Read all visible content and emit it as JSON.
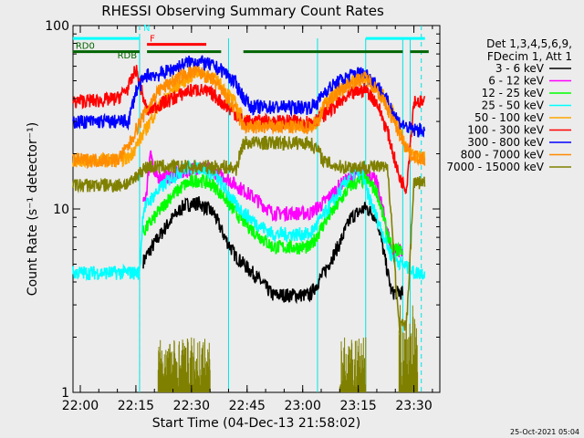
{
  "chart_data": {
    "type": "line",
    "title": "RHESSI Observing Summary Count Rates",
    "xlabel": "Start Time (04-Dec-13 21:58:02)",
    "ylabel": "Count Rate (s⁻¹ detector⁻¹)",
    "y_scale": "log",
    "ylim": [
      1,
      100
    ],
    "xlim": [
      "21:58:02",
      "23:37:00"
    ],
    "x_ticks": [
      "22:00",
      "22:15",
      "22:30",
      "22:45",
      "23:00",
      "23:15",
      "23:30"
    ],
    "y_ticks": [
      "1",
      "10",
      "100"
    ],
    "timestamp": "25-Oct-2021 05:04",
    "legend": {
      "placement": "right",
      "header": [
        "Det 1,3,4,5,6,9,",
        "FDecim 1, Att 1"
      ]
    },
    "series": [
      {
        "name": "3 - 6 keV",
        "color": "#000000",
        "x": [
          "22:17",
          "22:20",
          "22:24",
          "22:28",
          "22:32",
          "22:36",
          "22:39",
          "22:42",
          "22:47",
          "22:52",
          "22:57",
          "23:02",
          "23:06",
          "23:10",
          "23:13",
          "23:17",
          "23:20",
          "23:24",
          "23:27"
        ],
        "y": [
          5.2,
          6.5,
          8.5,
          10.5,
          10.8,
          9.5,
          7.0,
          5.5,
          4.4,
          3.4,
          3.4,
          3.4,
          4.6,
          6.5,
          9.0,
          10.2,
          9.0,
          3.5,
          3.5
        ]
      },
      {
        "name": "6 - 12 keV",
        "color": "#ff00ff",
        "x": [
          "22:17",
          "22:18",
          "22:19",
          "22:20",
          "22:24",
          "22:28",
          "22:32",
          "22:36",
          "22:39",
          "22:42",
          "22:47",
          "22:52",
          "22:57",
          "23:02",
          "23:06",
          "23:10",
          "23:13",
          "23:17",
          "23:20",
          "23:24",
          "23:27"
        ],
        "y": [
          10.5,
          13,
          22,
          15,
          15,
          16,
          17,
          16,
          15,
          13.5,
          11.5,
          9.5,
          9.5,
          9.5,
          11,
          13.5,
          15,
          16,
          14,
          6.0,
          6.0
        ]
      },
      {
        "name": "12 - 25 keV",
        "color": "#00ff00",
        "x": [
          "22:17",
          "22:20",
          "22:24",
          "22:28",
          "22:32",
          "22:36",
          "22:39",
          "22:42",
          "22:47",
          "22:52",
          "22:57",
          "23:02",
          "23:06",
          "23:10",
          "23:13",
          "23:17",
          "23:20",
          "23:24",
          "23:27"
        ],
        "y": [
          7.5,
          9.0,
          11.5,
          13.5,
          14.5,
          13.5,
          11.5,
          9.5,
          7.5,
          6.2,
          6.2,
          6.2,
          8.5,
          11,
          13.5,
          14.5,
          12.5,
          6.0,
          6.0
        ]
      },
      {
        "name": "25 - 50 keV",
        "color": "#00ffff",
        "x": [
          "21:58",
          "22:00",
          "22:05",
          "22:10",
          "22:14",
          "22:16",
          "22:17",
          "22:20",
          "22:24",
          "22:28",
          "22:32",
          "22:36",
          "22:39",
          "22:42",
          "22:47",
          "22:52",
          "22:57",
          "23:02",
          "23:06",
          "23:10",
          "23:13",
          "23:16",
          "23:17",
          "23:20",
          "23:24",
          "23:27",
          "23:30",
          "23:33"
        ],
        "y": [
          4.5,
          4.5,
          4.5,
          4.5,
          4.5,
          4.5,
          10,
          12,
          14.5,
          16.5,
          17,
          15.5,
          13,
          10.5,
          8.5,
          7.3,
          7.3,
          7.3,
          9.5,
          12.5,
          15.5,
          16,
          13,
          9,
          5.5,
          5.0,
          4.5,
          4.5
        ]
      },
      {
        "name": "50 - 100 keV",
        "color": "#ffa500",
        "x": [
          "21:58",
          "22:00",
          "22:10",
          "22:13",
          "22:15",
          "22:18",
          "22:21",
          "22:25",
          "22:29",
          "22:32",
          "22:36",
          "22:39",
          "22:42",
          "22:44",
          "22:46",
          "22:52",
          "22:57",
          "23:02",
          "23:04",
          "23:06",
          "23:10",
          "23:14",
          "23:16",
          "23:20",
          "23:23",
          "23:25",
          "23:28",
          "23:33"
        ],
        "y": [
          18.5,
          18.5,
          18.5,
          19,
          22,
          28,
          36,
          45,
          52,
          56,
          52,
          45,
          37,
          31,
          29,
          29,
          29,
          29,
          30,
          38,
          45,
          51,
          53,
          47,
          38,
          31,
          21,
          19
        ]
      },
      {
        "name": "100 - 300 keV",
        "color": "#ff0000",
        "x": [
          "21:58",
          "22:00",
          "22:05",
          "22:10",
          "22:13",
          "22:15",
          "22:18",
          "22:21",
          "22:25",
          "22:29",
          "22:32",
          "22:36",
          "22:39",
          "22:42",
          "22:44",
          "22:46",
          "22:52",
          "22:57",
          "23:02",
          "23:04",
          "23:06",
          "23:10",
          "23:14",
          "23:17",
          "23:20",
          "23:23",
          "23:26",
          "23:28",
          "23:30",
          "23:33"
        ],
        "y": [
          38,
          39,
          39,
          40,
          46,
          58,
          34,
          37,
          40,
          44,
          45,
          42,
          37,
          33,
          30,
          30,
          30,
          30,
          30,
          31,
          33,
          38,
          43,
          45,
          38,
          26,
          15,
          13,
          39,
          38
        ]
      },
      {
        "name": "300 - 800 keV",
        "color": "#0000ff",
        "x": [
          "21:58",
          "22:00",
          "22:10",
          "22:13",
          "22:15",
          "22:18",
          "22:21",
          "22:25",
          "22:29",
          "22:32",
          "22:36",
          "22:39",
          "22:42",
          "22:44",
          "22:46",
          "22:52",
          "22:57",
          "23:02",
          "23:04",
          "23:06",
          "23:10",
          "23:14",
          "23:17",
          "23:20",
          "23:23",
          "23:26",
          "23:28",
          "23:30",
          "23:33"
        ],
        "y": [
          30,
          30,
          30,
          30,
          44,
          54,
          54,
          58,
          63,
          64,
          60,
          56,
          48,
          41,
          36,
          36,
          36,
          36,
          38,
          44,
          50,
          55,
          55,
          48,
          38,
          30,
          28,
          27,
          27
        ]
      },
      {
        "name": "800 - 7000 keV",
        "color": "#ff8c00",
        "x": [
          "21:58",
          "22:00",
          "22:05",
          "22:10",
          "22:13",
          "22:15",
          "22:18",
          "22:21",
          "22:25",
          "22:29",
          "22:32",
          "22:36",
          "22:39",
          "22:42",
          "22:44",
          "22:46",
          "22:52",
          "22:57",
          "23:02",
          "23:04",
          "23:06",
          "23:10",
          "23:14",
          "23:17",
          "23:20",
          "23:23",
          "23:26",
          "23:29",
          "23:33"
        ],
        "y": [
          18.5,
          18.5,
          18.5,
          18.5,
          22,
          27,
          35,
          44,
          50,
          55,
          56,
          50,
          42,
          34,
          28,
          28,
          28,
          28,
          28,
          30,
          37,
          44,
          50,
          52,
          45,
          35,
          26,
          20,
          18.5
        ]
      },
      {
        "name": "7000 - 15000 keV",
        "color": "#808000",
        "x": [
          "21:58",
          "22:00",
          "22:05",
          "22:10",
          "22:14",
          "22:16",
          "22:18",
          "22:21",
          "22:25",
          "22:29",
          "22:32",
          "22:36",
          "22:39",
          "22:42",
          "22:44",
          "22:46",
          "22:52",
          "22:57",
          "23:02",
          "23:04",
          "23:06",
          "23:10",
          "23:14",
          "23:17",
          "23:20",
          "23:23",
          "23:26",
          "23:28",
          "23:30",
          "23:33"
        ],
        "y": [
          13.5,
          13.5,
          13.5,
          13.5,
          14,
          16,
          17,
          17,
          17,
          17,
          17,
          17,
          17,
          16.5,
          23,
          23,
          23,
          23,
          23,
          21,
          18,
          17,
          17,
          17,
          17,
          16.5,
          2.3,
          2.3,
          14,
          14
        ]
      }
    ],
    "bursts": [
      {
        "series": "7000 - 15000 keV",
        "from": "22:21",
        "to": "22:35",
        "low": 1.0,
        "high": 2.0
      },
      {
        "series": "7000 - 15000 keV",
        "from": "23:10",
        "to": "23:17",
        "low": 1.0,
        "high": 2.0
      },
      {
        "series": "7000 - 15000 keV",
        "from": "23:26",
        "to": "23:31",
        "low": 1.0,
        "high": 3.0
      }
    ],
    "flag_bars": [
      {
        "label": "",
        "color": "#00ffff",
        "segments": [
          [
            "21:58",
            "22:16"
          ],
          [
            "23:17",
            "23:33"
          ]
        ],
        "level": 85
      },
      {
        "label": "N",
        "color": "#00ffff",
        "segments": [],
        "at": "22:17",
        "level": 90
      },
      {
        "label": "F",
        "color": "#ff0000",
        "segments": [
          [
            "22:18",
            "22:34"
          ]
        ],
        "level": 79
      },
      {
        "label": "RD0",
        "color": "#006400",
        "segments": [
          [
            "21:58",
            "22:16"
          ],
          [
            "22:18",
            "22:38"
          ],
          [
            "22:44",
            "23:04"
          ],
          [
            "23:04",
            "23:27"
          ],
          [
            "23:29",
            "23:34"
          ]
        ],
        "level": 72
      },
      {
        "label": "RDB",
        "color": "#006400",
        "segments": [],
        "at": "22:10",
        "level": 64
      }
    ],
    "vlines": {
      "dashed": [
        "22:16",
        "23:32"
      ],
      "solid": [
        "22:16",
        "22:40",
        "23:04",
        "23:17",
        "23:27",
        "23:29"
      ]
    },
    "grid": false
  }
}
